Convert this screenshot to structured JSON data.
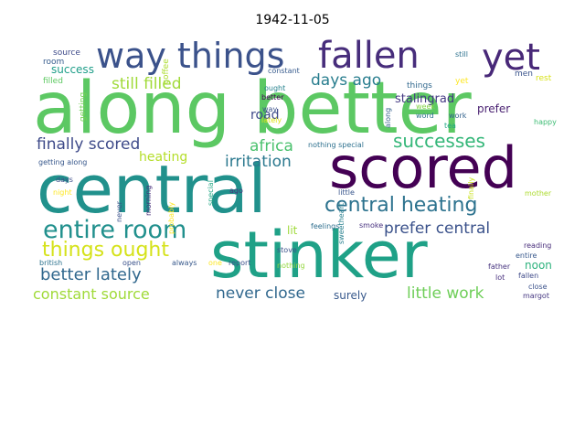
{
  "title": "1942-11-05",
  "words": [
    {
      "text": "along better",
      "color": "#5cc863"
    },
    {
      "text": "central",
      "color": "#21918c"
    },
    {
      "text": "scored",
      "color": "#440154"
    },
    {
      "text": "stinker",
      "color": "#1fa187"
    },
    {
      "text": "fallen",
      "color": "#472d7b"
    },
    {
      "text": "yet",
      "color": "#482878"
    },
    {
      "text": "way things",
      "color": "#3b528b"
    },
    {
      "text": "entire room",
      "color": "#21908d"
    },
    {
      "text": "central heating",
      "color": "#2c728e"
    },
    {
      "text": "things ought",
      "color": "#d5e21a"
    },
    {
      "text": "finally scored",
      "color": "#3e4a89"
    },
    {
      "text": "successes",
      "color": "#35b779"
    },
    {
      "text": "better lately",
      "color": "#31688e"
    },
    {
      "text": "still filled",
      "color": "#a0da39"
    },
    {
      "text": "days ago",
      "color": "#287d8e"
    },
    {
      "text": "irritation",
      "color": "#2a788e"
    },
    {
      "text": "prefer central",
      "color": "#3b528b"
    },
    {
      "text": "africa",
      "color": "#4ac16d"
    },
    {
      "text": "little work",
      "color": "#6ece58"
    },
    {
      "text": "never close",
      "color": "#31688e"
    },
    {
      "text": "constant source",
      "color": "#a0da39"
    },
    {
      "text": "heating",
      "color": "#b5de2b"
    },
    {
      "text": "road",
      "color": "#3e4989"
    },
    {
      "text": "stalingrad",
      "color": "#443983"
    },
    {
      "text": "success",
      "color": "#1f9e89"
    },
    {
      "text": "prefer",
      "color": "#481f70"
    },
    {
      "text": "noon",
      "color": "#2db27d"
    },
    {
      "text": "surely",
      "color": "#38598c"
    },
    {
      "text": "lit",
      "color": "#9fda3a"
    },
    {
      "text": "source",
      "color": "#3e4a89"
    },
    {
      "text": "room",
      "color": "#365c8d"
    },
    {
      "text": "filled",
      "color": "#5ec962"
    },
    {
      "text": "coffee",
      "color": "#addc30"
    },
    {
      "text": "getting",
      "color": "#73d056"
    },
    {
      "text": "constant",
      "color": "#375b8d"
    },
    {
      "text": "still",
      "color": "#2c718e"
    },
    {
      "text": "men",
      "color": "#3a548c"
    },
    {
      "text": "rest",
      "color": "#d8e219"
    },
    {
      "text": "things",
      "color": "#31688e"
    },
    {
      "text": "yet",
      "color": "#fde725"
    },
    {
      "text": "way",
      "color": "#3b528b"
    },
    {
      "text": "ought",
      "color": "#26828e"
    },
    {
      "text": "better",
      "color": "#440154"
    },
    {
      "text": "lately",
      "color": "#dde318"
    },
    {
      "text": "week",
      "color": "#86d549"
    },
    {
      "text": "word",
      "color": "#2c728e"
    },
    {
      "text": "work",
      "color": "#33638d"
    },
    {
      "text": "happy",
      "color": "#3dbc74"
    },
    {
      "text": "along",
      "color": "#355f8d"
    },
    {
      "text": "tea",
      "color": "#21a685"
    },
    {
      "text": "nothing special",
      "color": "#2d708e"
    },
    {
      "text": "getting along",
      "color": "#38588c"
    },
    {
      "text": "night",
      "color": "#fde725"
    },
    {
      "text": "days",
      "color": "#3d4d8a"
    },
    {
      "text": "morning",
      "color": "#472c7a"
    },
    {
      "text": "ago",
      "color": "#46337f"
    },
    {
      "text": "special",
      "color": "#22a785"
    },
    {
      "text": "little",
      "color": "#39568c"
    },
    {
      "text": "mother",
      "color": "#addc30"
    },
    {
      "text": "finally",
      "color": "#cae11f"
    },
    {
      "text": "never",
      "color": "#3b528b"
    },
    {
      "text": "probably",
      "color": "#fde725"
    },
    {
      "text": "feelings",
      "color": "#2e6e8e"
    },
    {
      "text": "sweetheart",
      "color": "#277f8e"
    },
    {
      "text": "one",
      "color": "#fde725"
    },
    {
      "text": "report",
      "color": "#3b528b"
    },
    {
      "text": "smoke",
      "color": "#46307e"
    },
    {
      "text": "reading",
      "color": "#472c7a"
    },
    {
      "text": "entire",
      "color": "#38588c"
    },
    {
      "text": "stove",
      "color": "#3b528b"
    },
    {
      "text": "british",
      "color": "#2c728e"
    },
    {
      "text": "open",
      "color": "#3b528b"
    },
    {
      "text": "always",
      "color": "#38598c"
    },
    {
      "text": "nothing",
      "color": "#95d840"
    },
    {
      "text": "father",
      "color": "#46337f"
    },
    {
      "text": "lot",
      "color": "#472f7d"
    },
    {
      "text": "fallen",
      "color": "#3e4a89"
    },
    {
      "text": "close",
      "color": "#3b528b"
    },
    {
      "text": "margot",
      "color": "#453781"
    }
  ]
}
